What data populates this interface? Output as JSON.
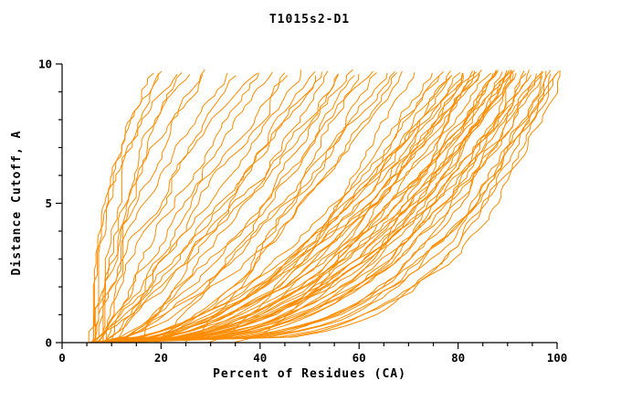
{
  "chart_data": {
    "type": "line",
    "title": "T1015s2-D1",
    "xlabel": "Percent of Residues (CA)",
    "ylabel": "Distance Cutoff, A",
    "xlim": [
      0,
      100
    ],
    "ylim": [
      0,
      10
    ],
    "xticks": [
      0,
      20,
      40,
      60,
      80,
      100
    ],
    "yticks": [
      0,
      5,
      10
    ],
    "x_minor_step": 5,
    "y_minor_step": 1,
    "grid": false,
    "legend": "none",
    "line_color": "#ff8c00",
    "axis_color": "#000000",
    "curve_top_cutoff": 9.7,
    "curves_schema": [
      "x_start_pct",
      "x_top_pct",
      "shape_power",
      "seed"
    ],
    "curves": [
      [
        6,
        18,
        2.6,
        1
      ],
      [
        7,
        20,
        2.2,
        2
      ],
      [
        6,
        22,
        2.4,
        3
      ],
      [
        8,
        24,
        1.9,
        4
      ],
      [
        7,
        26,
        2.0,
        5
      ],
      [
        9,
        28,
        1.8,
        6
      ],
      [
        8,
        30,
        1.7,
        7
      ],
      [
        6,
        21,
        2.8,
        8
      ],
      [
        7,
        33,
        1.5,
        9
      ],
      [
        8,
        36,
        1.4,
        10
      ],
      [
        6,
        38,
        1.3,
        11
      ],
      [
        9,
        40,
        1.2,
        12
      ],
      [
        7,
        42,
        1.1,
        13
      ],
      [
        10,
        44,
        1.0,
        14
      ],
      [
        8,
        46,
        1.0,
        15
      ],
      [
        6,
        48,
        0.9,
        16
      ],
      [
        9,
        50,
        0.95,
        17
      ],
      [
        7,
        52,
        0.9,
        18
      ],
      [
        11,
        54,
        0.85,
        19
      ],
      [
        8,
        56,
        0.8,
        20
      ],
      [
        6,
        58,
        0.8,
        21
      ],
      [
        10,
        60,
        0.75,
        22
      ],
      [
        7,
        62,
        0.7,
        23
      ],
      [
        9,
        64,
        0.7,
        24
      ],
      [
        8,
        66,
        0.65,
        25
      ],
      [
        12,
        68,
        0.6,
        26
      ],
      [
        7,
        70,
        0.6,
        27
      ],
      [
        20,
        55,
        0.9,
        28
      ],
      [
        25,
        60,
        0.8,
        29
      ],
      [
        30,
        72,
        0.7,
        30
      ],
      [
        34,
        78,
        0.6,
        31
      ],
      [
        15,
        50,
        1.0,
        32
      ],
      [
        18,
        65,
        0.75,
        33
      ],
      [
        7,
        75,
        0.55,
        34
      ],
      [
        9,
        76,
        0.5,
        35
      ],
      [
        6,
        77,
        0.5,
        36
      ],
      [
        10,
        78,
        0.5,
        37
      ],
      [
        8,
        79,
        0.45,
        38
      ],
      [
        7,
        80,
        0.45,
        39
      ],
      [
        11,
        81,
        0.45,
        40
      ],
      [
        6,
        82,
        0.4,
        41
      ],
      [
        9,
        83,
        0.4,
        42
      ],
      [
        8,
        84,
        0.4,
        43
      ],
      [
        10,
        85,
        0.38,
        44
      ],
      [
        7,
        86,
        0.38,
        45
      ],
      [
        6,
        87,
        0.36,
        46
      ],
      [
        12,
        88,
        0.36,
        47
      ],
      [
        8,
        89,
        0.34,
        48
      ],
      [
        9,
        90,
        0.34,
        49
      ],
      [
        7,
        91,
        0.32,
        50
      ],
      [
        10,
        92,
        0.32,
        51
      ],
      [
        6,
        93,
        0.3,
        52
      ],
      [
        8,
        94,
        0.3,
        53
      ],
      [
        11,
        95,
        0.28,
        54
      ],
      [
        7,
        96,
        0.28,
        55
      ],
      [
        9,
        97,
        0.26,
        56
      ],
      [
        6,
        98,
        0.26,
        57
      ],
      [
        8,
        99,
        0.24,
        58
      ],
      [
        10,
        100,
        0.24,
        59
      ],
      [
        7,
        100,
        0.22,
        60
      ],
      [
        9,
        99,
        0.3,
        61
      ],
      [
        8,
        97,
        0.35,
        62
      ],
      [
        6,
        95,
        0.4,
        63
      ],
      [
        10,
        93,
        0.45,
        64
      ],
      [
        7,
        91,
        0.5,
        65
      ],
      [
        9,
        89,
        0.42,
        66
      ],
      [
        8,
        87,
        0.44,
        67
      ],
      [
        11,
        85,
        0.5,
        68
      ],
      [
        6,
        96,
        0.33,
        69
      ],
      [
        9,
        98,
        0.29,
        70
      ],
      [
        7,
        94,
        0.37,
        71
      ],
      [
        10,
        90,
        0.41,
        72
      ],
      [
        8,
        92,
        0.39,
        73
      ],
      [
        12,
        88,
        0.47,
        74
      ],
      [
        6,
        86,
        0.52,
        75
      ],
      [
        9,
        84,
        0.55,
        76
      ],
      [
        7,
        82,
        0.58,
        77
      ],
      [
        13,
        80,
        0.6,
        78
      ]
    ]
  }
}
